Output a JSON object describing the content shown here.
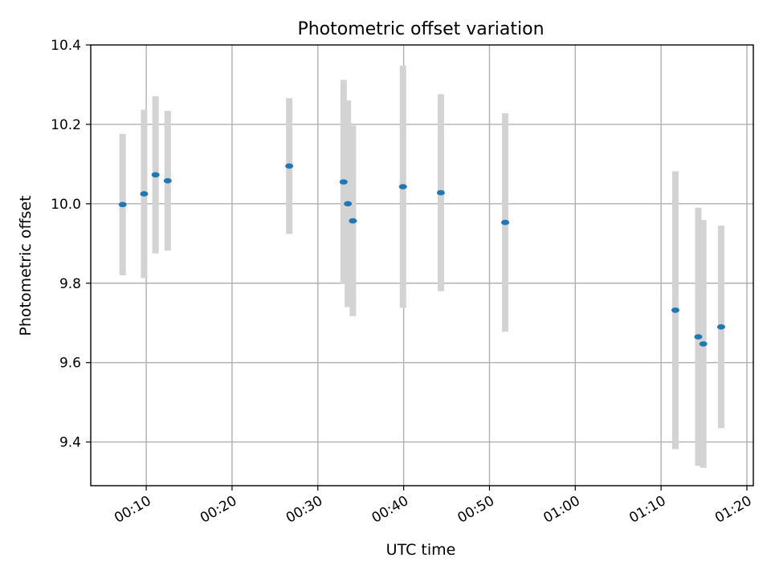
{
  "chart_data": {
    "type": "scatter",
    "title": "Photometric offset variation",
    "xlabel": "UTC time",
    "ylabel": "Photometric offset",
    "xlim": [
      "00:03:32",
      "01:20:45"
    ],
    "ylim": [
      9.29,
      10.4
    ],
    "x_ticks": [
      "00:10",
      "00:20",
      "00:30",
      "00:40",
      "00:50",
      "01:00",
      "01:10",
      "01:20"
    ],
    "y_ticks": [
      9.4,
      9.6,
      9.8,
      10.0,
      10.2,
      10.4
    ],
    "y_tick_labels": [
      "9.4",
      "9.6",
      "9.8",
      "10.0",
      "10.2",
      "10.4"
    ],
    "grid": true,
    "point_color": "#1f77b4",
    "errorbar_color": "#d3d3d3",
    "points": [
      {
        "x": "00:07:15",
        "y": 9.998,
        "err": 0.178
      },
      {
        "x": "00:09:45",
        "y": 10.025,
        "err": 0.212
      },
      {
        "x": "00:11:05",
        "y": 10.073,
        "err": 0.198
      },
      {
        "x": "00:12:30",
        "y": 10.058,
        "err": 0.176
      },
      {
        "x": "00:26:40",
        "y": 10.095,
        "err": 0.171
      },
      {
        "x": "00:33:00",
        "y": 10.055,
        "err": 0.257
      },
      {
        "x": "00:33:30",
        "y": 10.0,
        "err": 0.26
      },
      {
        "x": "00:34:05",
        "y": 9.957,
        "err": 0.24
      },
      {
        "x": "00:39:55",
        "y": 10.043,
        "err": 0.305
      },
      {
        "x": "00:44:20",
        "y": 10.028,
        "err": 0.248
      },
      {
        "x": "00:51:50",
        "y": 9.953,
        "err": 0.275
      },
      {
        "x": "01:11:40",
        "y": 9.732,
        "err": 0.35
      },
      {
        "x": "01:14:20",
        "y": 9.665,
        "err": 0.325
      },
      {
        "x": "01:14:55",
        "y": 9.647,
        "err": 0.312
      },
      {
        "x": "01:17:00",
        "y": 9.69,
        "err": 0.255
      }
    ]
  }
}
